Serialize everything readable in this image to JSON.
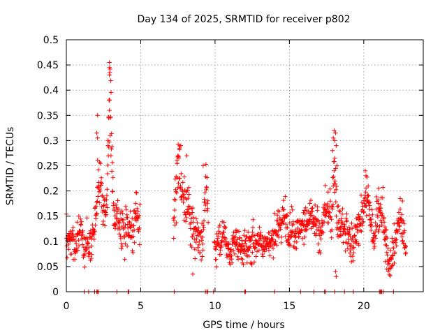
{
  "chart_data": {
    "type": "scatter",
    "title": "Day 134 of 2025, SRMTID for receiver p802",
    "xlabel": "GPS time / hours",
    "ylabel": "SRMTID / TECUs",
    "xlim": [
      0,
      24
    ],
    "ylim": [
      0,
      0.5
    ],
    "x_ticks": [
      0,
      5,
      10,
      15,
      20
    ],
    "x_tick_labels": [
      "0",
      "5",
      "10",
      "15",
      "20"
    ],
    "y_ticks": [
      0,
      0.05,
      0.1,
      0.15,
      0.2,
      0.25,
      0.3,
      0.35,
      0.4,
      0.45,
      0.5
    ],
    "y_tick_labels": [
      "0",
      "0.05",
      "0.1",
      "0.15",
      "0.2",
      "0.25",
      "0.3",
      "0.35",
      "0.4",
      "0.45",
      "0.5"
    ],
    "grid": true,
    "marker": "+",
    "series_color": "#ff0000",
    "series": [
      {
        "name": "SRMTID",
        "segments": [
          {
            "x0": 0.0,
            "x1": 4.95,
            "baseline": 0.115,
            "noise": 0.035,
            "peaks": [
              [
                2.2,
                0.14,
                0.18
              ],
              [
                2.95,
                0.3,
                0.14
              ],
              [
                2.75,
                0.06,
                0.5
              ],
              [
                4.75,
                0.06,
                0.25
              ],
              [
                3.4,
                0.04,
                0.3
              ]
            ]
          },
          {
            "x0": 7.2,
            "x1": 9.55,
            "baseline": 0.12,
            "noise": 0.04,
            "peaks": [
              [
                7.55,
                0.14,
                0.22
              ],
              [
                8.1,
                0.06,
                0.35
              ],
              [
                9.35,
                0.09,
                0.12
              ]
            ]
          },
          {
            "x0": 9.95,
            "x1": 13.3,
            "baseline": 0.085,
            "noise": 0.025,
            "peaks": [
              [
                10.5,
                0.03,
                0.5
              ],
              [
                12.9,
                0.03,
                0.4
              ]
            ]
          },
          {
            "x0": 13.3,
            "x1": 17.0,
            "baseline": 0.11,
            "noise": 0.03,
            "peaks": [
              [
                15.0,
                0.04,
                0.6
              ],
              [
                16.0,
                0.03,
                0.5
              ]
            ]
          },
          {
            "x0": 17.0,
            "x1": 18.6,
            "baseline": 0.12,
            "noise": 0.035,
            "peaks": [
              [
                18.05,
                0.18,
                0.14
              ],
              [
                17.5,
                0.04,
                0.3
              ]
            ]
          },
          {
            "x0": 18.6,
            "x1": 21.4,
            "baseline": 0.12,
            "noise": 0.035,
            "peaks": [
              [
                20.1,
                0.08,
                0.3
              ],
              [
                21.0,
                0.06,
                0.25
              ]
            ]
          },
          {
            "x0": 21.4,
            "x1": 22.85,
            "baseline": 0.09,
            "noise": 0.03,
            "peaks": [
              [
                22.4,
                0.07,
                0.25
              ],
              [
                21.7,
                -0.02,
                0.2
              ]
            ]
          }
        ],
        "highlight_points": [
          [
            2.9,
            0.455
          ],
          [
            2.9,
            0.445
          ],
          [
            2.9,
            0.43
          ],
          [
            2.87,
            0.38
          ],
          [
            2.9,
            0.36
          ],
          [
            2.85,
            0.345
          ],
          [
            2.1,
            0.35
          ],
          [
            2.05,
            0.315
          ],
          [
            2.1,
            0.305
          ],
          [
            2.95,
            0.31
          ],
          [
            2.8,
            0.29
          ],
          [
            3.0,
            0.27
          ],
          [
            7.7,
            0.29
          ],
          [
            7.6,
            0.285
          ],
          [
            7.5,
            0.27
          ],
          [
            7.45,
            0.255
          ],
          [
            8.1,
            0.27
          ],
          [
            9.2,
            0.25
          ],
          [
            8.5,
            0.035
          ],
          [
            18.0,
            0.32
          ],
          [
            18.1,
            0.315
          ],
          [
            17.95,
            0.305
          ],
          [
            18.05,
            0.3
          ],
          [
            18.15,
            0.29
          ],
          [
            17.9,
            0.28
          ],
          [
            18.2,
            0.25
          ],
          [
            18.0,
            0.24
          ],
          [
            18.15,
            0.03
          ],
          [
            18.1,
            0.04
          ],
          [
            20.1,
            0.24
          ],
          [
            20.15,
            0.23
          ],
          [
            20.3,
            0.21
          ],
          [
            21.0,
            0.205
          ],
          [
            22.45,
            0.185
          ],
          [
            22.6,
            0.18
          ],
          [
            21.45,
            0.06
          ],
          [
            21.55,
            0.045
          ]
        ],
        "zero_points": [
          1.2,
          1.5,
          1.9,
          2.05,
          2.1,
          2.15,
          3.4,
          4.15,
          4.2,
          7.25,
          9.35,
          9.45,
          9.5,
          9.9,
          12.0,
          12.05,
          14.0,
          15.75,
          16.65,
          17.35,
          17.45,
          18.05,
          18.7,
          19.3,
          21.05,
          21.1,
          21.15,
          21.2,
          21.3,
          22.0
        ]
      }
    ]
  }
}
